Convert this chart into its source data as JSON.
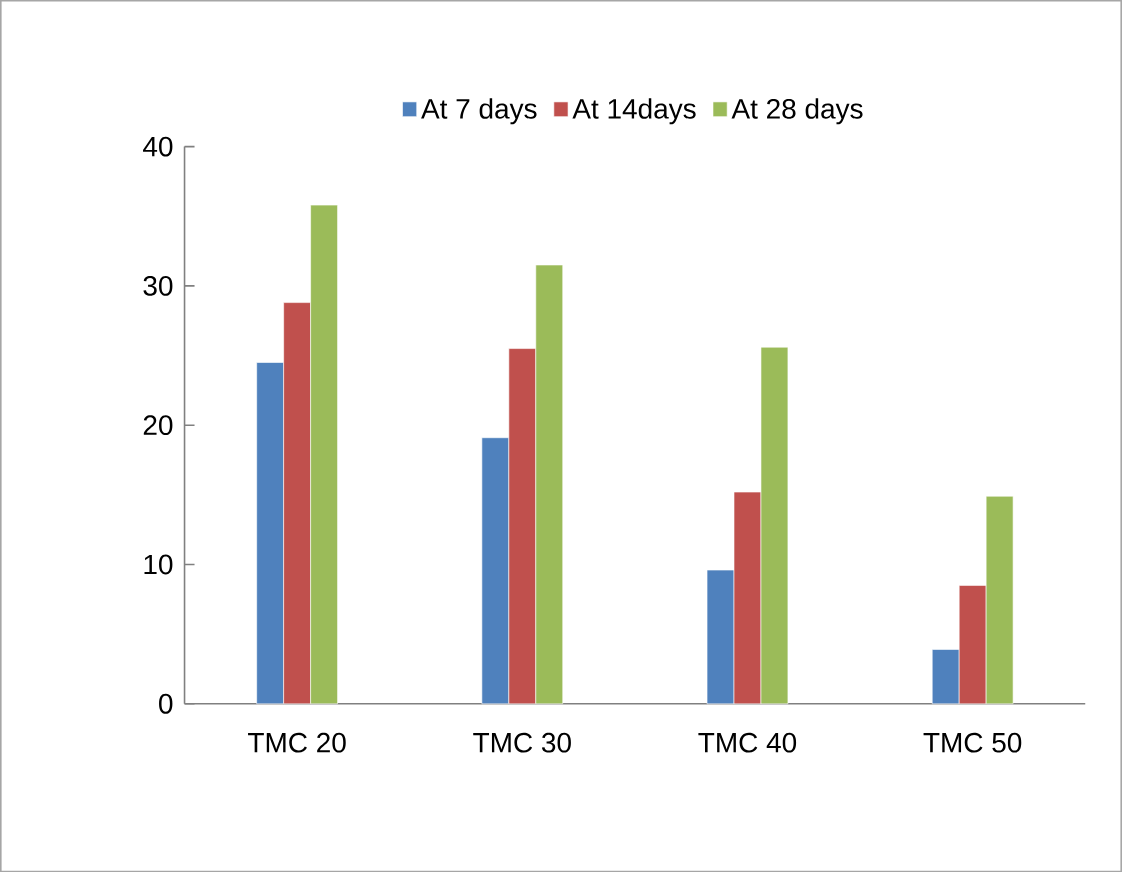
{
  "chart_data": {
    "type": "bar",
    "categories": [
      "TMC 20",
      "TMC 30",
      "TMC 40",
      "TMC 50"
    ],
    "series": [
      {
        "name": "At 7 days",
        "color": "#4f81bd",
        "values": [
          24.5,
          19.1,
          9.6,
          3.9
        ]
      },
      {
        "name": "At 14days",
        "color": "#c0504d",
        "values": [
          28.8,
          25.5,
          15.2,
          8.5
        ]
      },
      {
        "name": "At 28 days",
        "color": "#9bbb59",
        "values": [
          35.8,
          31.5,
          25.6,
          14.9
        ]
      }
    ],
    "ylim": [
      0,
      40
    ],
    "yticks": [
      0,
      10,
      20,
      30,
      40
    ],
    "grid": false,
    "legend": "top"
  }
}
